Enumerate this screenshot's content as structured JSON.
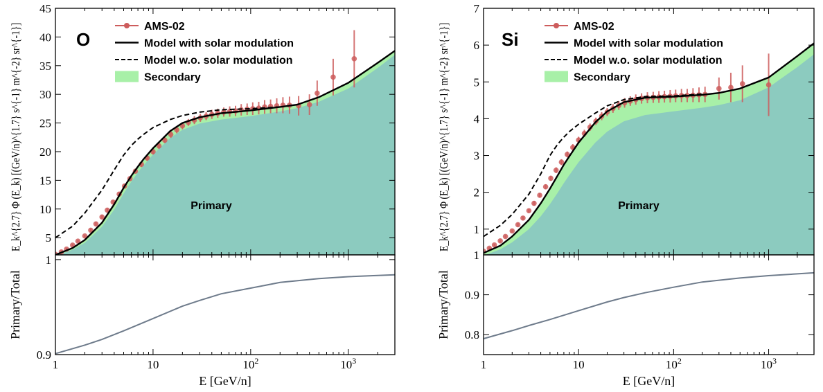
{
  "chart_data": [
    {
      "type": "line",
      "panel_label": "O",
      "xlabel": "E [GeV/n]",
      "xscale": "log",
      "xlim": [
        1,
        3000
      ],
      "x_ticks": [
        {
          "value": 1,
          "label": "1"
        },
        {
          "value": 10,
          "label": "10"
        },
        {
          "value": 100,
          "label": "10",
          "sup": "2"
        },
        {
          "value": 1000,
          "label": "10",
          "sup": "3"
        }
      ],
      "top": {
        "ylabel": "E_k^{2.7} Φ (E_k) [(GeV/n)^{1.7} s^{-1} m^{-2} sr^{-1}]",
        "ylim": [
          2,
          45
        ],
        "y_ticks": [
          5,
          10,
          15,
          20,
          25,
          30,
          35,
          40,
          45
        ],
        "region_label": "Primary",
        "legend_position": "top-left",
        "legend": {
          "ams": "AMS-02",
          "model": "Model with solar modulation",
          "model_wo": "Model w.o. solar modulation",
          "secondary": "Secondary"
        },
        "series": [
          {
            "name": "Model with solar modulation",
            "style": "solid",
            "x": [
              1,
              1.5,
              2,
              3,
              4,
              5,
              6,
              7,
              8,
              10,
              15,
              20,
              30,
              50,
              100,
              200,
              300,
              500,
              1000,
              2000,
              3000
            ],
            "y": [
              2.0,
              3.2,
              4.6,
              7.6,
              10.8,
              13.7,
              15.8,
              17.4,
              18.7,
              20.6,
              23.6,
              25.0,
              26.0,
              26.7,
              27.2,
              27.8,
              28.2,
              29.5,
              32.0,
              35.5,
              37.6
            ]
          },
          {
            "name": "Model w.o. solar modulation",
            "style": "dashed",
            "x": [
              1,
              1.5,
              2,
              3,
              4,
              5,
              6,
              7,
              8,
              10,
              15,
              20,
              30,
              50,
              100,
              200
            ],
            "y": [
              5.0,
              7.0,
              9.3,
              13.3,
              16.8,
              19.4,
              21.1,
              22.2,
              23.0,
              24.2,
              25.6,
              26.3,
              26.9,
              27.3,
              27.5,
              27.8
            ]
          },
          {
            "name": "Primary",
            "x": [
              1,
              1.5,
              2,
              3,
              4,
              5,
              6,
              7,
              8,
              10,
              15,
              20,
              30,
              50,
              100,
              200,
              300,
              500,
              1000,
              2000,
              3000
            ],
            "y": [
              1.8,
              2.9,
              4.1,
              6.9,
              9.9,
              12.7,
              14.8,
              16.4,
              17.6,
              19.5,
              22.4,
              23.8,
              24.9,
              25.6,
              26.2,
              27.0,
              27.6,
              28.7,
              31.0,
              34.6,
              36.9
            ]
          },
          {
            "name": "AMS-02",
            "x": [
              1.0,
              1.15,
              1.3,
              1.5,
              1.7,
              2.0,
              2.3,
              2.6,
              3.0,
              3.4,
              3.9,
              4.5,
              5.1,
              5.8,
              6.6,
              7.6,
              8.7,
              10.0,
              11.5,
              13.2,
              15.2,
              17.5,
              20.0,
              23.0,
              26.5,
              30.5,
              35.0,
              40.0,
              46.0,
              53.0,
              61.0,
              70.0,
              80.0,
              92.0,
              105.0,
              121.0,
              139.0,
              160.0,
              185.0,
              214.0,
              250.0,
              310.0,
              400.0,
              480.0,
              700.0,
              1150.0
            ],
            "y": [
              2.1,
              2.5,
              3.0,
              3.7,
              4.4,
              5.3,
              6.3,
              7.4,
              8.6,
              9.8,
              11.2,
              12.6,
              14.0,
              15.3,
              16.6,
              17.8,
              18.9,
              20.0,
              21.0,
              22.0,
              23.0,
              23.8,
              24.5,
              25.1,
              25.5,
              25.9,
              26.2,
              26.5,
              26.7,
              26.9,
              27.0,
              27.1,
              27.3,
              27.4,
              27.5,
              27.6,
              27.8,
              27.9,
              28.0,
              28.1,
              28.1,
              28.0,
              28.2,
              30.2,
              33.0,
              36.2
            ],
            "yerr": [
              0.2,
              0.2,
              0.2,
              0.2,
              0.2,
              0.2,
              0.3,
              0.3,
              0.3,
              0.3,
              0.3,
              0.4,
              0.4,
              0.4,
              0.4,
              0.5,
              0.5,
              0.5,
              0.5,
              0.5,
              0.6,
              0.6,
              0.6,
              0.6,
              0.7,
              0.7,
              0.7,
              0.8,
              0.8,
              0.8,
              0.9,
              0.9,
              1.0,
              1.0,
              1.1,
              1.1,
              1.2,
              1.2,
              1.3,
              1.4,
              1.5,
              1.7,
              1.8,
              2.2,
              3.2,
              5.0
            ]
          }
        ]
      },
      "bottom": {
        "ylabel": "Primary/Total",
        "ylim": [
          0.9,
          1.005
        ],
        "y_ticks": [
          {
            "value": 0.9,
            "label": "0.9"
          },
          {
            "value": 1.0,
            "label": "1"
          }
        ],
        "series": [
          {
            "name": "Primary/Total",
            "x": [
              1,
              2,
              3,
              5,
              10,
              20,
              30,
              50,
              100,
              200,
              500,
              1000,
              3000
            ],
            "y": [
              0.901,
              0.91,
              0.916,
              0.925,
              0.938,
              0.951,
              0.957,
              0.964,
              0.97,
              0.976,
              0.98,
              0.982,
              0.984
            ]
          }
        ]
      }
    },
    {
      "type": "line",
      "panel_label": "Si",
      "xlabel": "E [GeV/n]",
      "xscale": "log",
      "xlim": [
        1,
        3000
      ],
      "x_ticks": [
        {
          "value": 1,
          "label": "1"
        },
        {
          "value": 10,
          "label": "10"
        },
        {
          "value": 100,
          "label": "10",
          "sup": "2"
        },
        {
          "value": 1000,
          "label": "10",
          "sup": "3"
        }
      ],
      "top": {
        "ylabel": "E_k^{2.7} Φ (E_k) [(GeV/n)^{1.7} s^{-1} m^{-2} sr^{-1}]",
        "ylim": [
          0.3,
          7
        ],
        "y_ticks": [
          1,
          2,
          3,
          4,
          5,
          6,
          7
        ],
        "region_label": "Primary",
        "legend_position": "top-left",
        "legend": {
          "ams": "AMS-02",
          "model": "Model with solar modulation",
          "model_wo": "Model w.o. solar modulation",
          "secondary": "Secondary"
        },
        "series": [
          {
            "name": "Model with solar modulation",
            "style": "solid",
            "x": [
              1,
              1.5,
              2,
              3,
              4,
              5,
              6,
              7,
              8,
              10,
              15,
              20,
              30,
              50,
              100,
              200,
              300,
              500,
              1000,
              2000,
              3000
            ],
            "y": [
              0.35,
              0.55,
              0.8,
              1.25,
              1.7,
              2.1,
              2.45,
              2.75,
              2.98,
              3.35,
              3.9,
              4.2,
              4.45,
              4.57,
              4.6,
              4.65,
              4.7,
              4.82,
              5.12,
              5.7,
              6.05
            ]
          },
          {
            "name": "Model w.o. solar modulation",
            "style": "dashed",
            "x": [
              1,
              1.5,
              2,
              3,
              4,
              5,
              6,
              7,
              8,
              10,
              15,
              20,
              30,
              50,
              100,
              200
            ],
            "y": [
              0.8,
              1.1,
              1.4,
              1.95,
              2.5,
              3.0,
              3.3,
              3.5,
              3.65,
              3.85,
              4.15,
              4.35,
              4.52,
              4.6,
              4.62,
              4.67
            ]
          },
          {
            "name": "Primary",
            "x": [
              1,
              1.5,
              2,
              3,
              4,
              5,
              6,
              7,
              8,
              10,
              15,
              20,
              30,
              50,
              100,
              200,
              300,
              500,
              1000,
              2000,
              3000
            ],
            "y": [
              0.28,
              0.45,
              0.64,
              1.0,
              1.35,
              1.68,
              1.98,
              2.25,
              2.47,
              2.82,
              3.35,
              3.65,
              3.93,
              4.1,
              4.2,
              4.3,
              4.37,
              4.5,
              4.85,
              5.4,
              5.75
            ]
          },
          {
            "name": "AMS-02",
            "x": [
              1.0,
              1.15,
              1.3,
              1.5,
              1.7,
              2.0,
              2.3,
              2.6,
              3.0,
              3.4,
              3.9,
              4.5,
              5.1,
              5.8,
              6.6,
              7.6,
              8.7,
              10.0,
              11.5,
              13.2,
              15.2,
              17.5,
              20.0,
              23.0,
              26.5,
              30.5,
              35.0,
              40.0,
              46.0,
              53.0,
              61.0,
              70.0,
              80.0,
              92.0,
              105.0,
              121.0,
              139.0,
              160.0,
              185.0,
              214.0,
              300.0,
              400.0,
              530.0,
              1000.0
            ],
            "y": [
              0.4,
              0.48,
              0.57,
              0.68,
              0.8,
              0.95,
              1.12,
              1.3,
              1.5,
              1.7,
              1.92,
              2.15,
              2.38,
              2.6,
              2.82,
              3.03,
              3.22,
              3.42,
              3.6,
              3.77,
              3.93,
              4.07,
              4.18,
              4.28,
              4.36,
              4.43,
              4.48,
              4.52,
              4.55,
              4.57,
              4.58,
              4.59,
              4.6,
              4.61,
              4.62,
              4.63,
              4.63,
              4.64,
              4.65,
              4.66,
              4.82,
              4.85,
              4.95,
              4.92
            ],
            "yerr": [
              0.03,
              0.03,
              0.03,
              0.04,
              0.04,
              0.04,
              0.05,
              0.05,
              0.05,
              0.06,
              0.06,
              0.07,
              0.07,
              0.08,
              0.08,
              0.08,
              0.09,
              0.09,
              0.1,
              0.1,
              0.1,
              0.11,
              0.11,
              0.12,
              0.12,
              0.13,
              0.13,
              0.14,
              0.14,
              0.15,
              0.15,
              0.16,
              0.16,
              0.17,
              0.17,
              0.18,
              0.18,
              0.19,
              0.2,
              0.21,
              0.3,
              0.4,
              0.5,
              0.85
            ]
          }
        ]
      },
      "bottom": {
        "ylabel": "Primary/Total",
        "ylim": [
          0.75,
          1.0
        ],
        "y_ticks": [
          {
            "value": 0.8,
            "label": "0.8"
          },
          {
            "value": 0.9,
            "label": "0.9"
          },
          {
            "value": 1.0,
            "label": "1"
          }
        ],
        "series": [
          {
            "name": "Primary/Total",
            "x": [
              1,
              2,
              3,
              5,
              10,
              20,
              30,
              50,
              100,
              200,
              500,
              1000,
              3000
            ],
            "y": [
              0.79,
              0.81,
              0.823,
              0.838,
              0.86,
              0.882,
              0.893,
              0.905,
              0.919,
              0.932,
              0.942,
              0.948,
              0.955
            ]
          }
        ]
      }
    }
  ]
}
